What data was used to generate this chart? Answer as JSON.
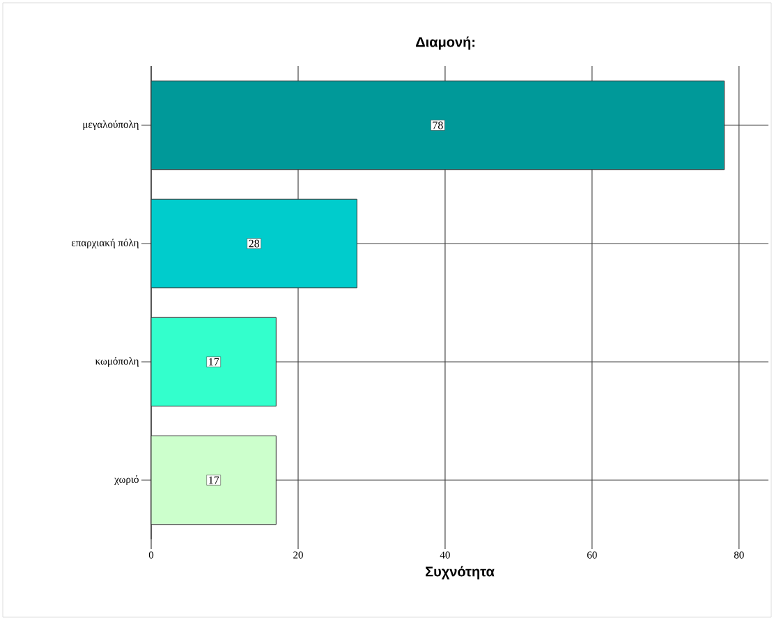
{
  "chart_data": {
    "type": "bar",
    "orientation": "horizontal",
    "title": "Διαμονή:",
    "xlabel": "Συχνότητα",
    "categories": [
      "μεγαλούπολη",
      "επαρχιακή πόλη",
      "κωμόπολη",
      "χωριό"
    ],
    "values": [
      78,
      28,
      17,
      17
    ],
    "colors": [
      "#009999",
      "#00cccc",
      "#33ffcc",
      "#ccffcc"
    ],
    "xlim": [
      0,
      84
    ],
    "xticks": [
      0,
      20,
      40,
      60,
      80
    ],
    "grid": true,
    "data_labels": true
  }
}
